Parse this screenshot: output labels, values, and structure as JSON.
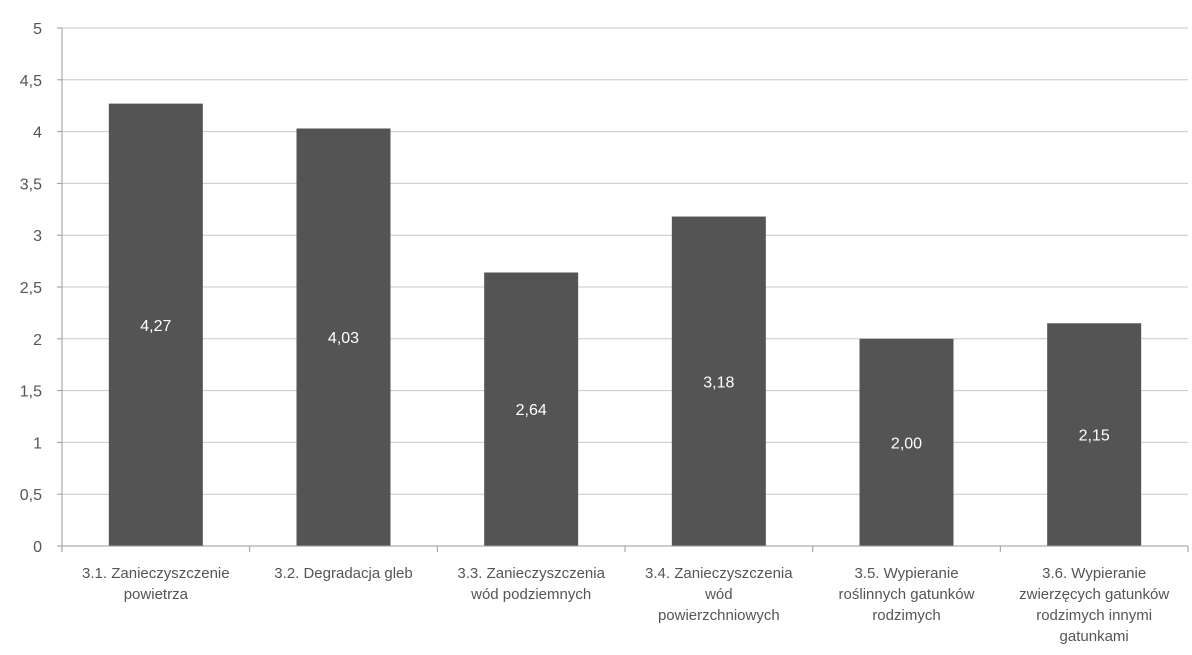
{
  "chart_data": {
    "type": "bar",
    "categories": [
      [
        "3.1. Zanieczyszczenie",
        "powietrza"
      ],
      [
        "3.2. Degradacja gleb"
      ],
      [
        "3.3. Zanieczyszczenia",
        "wód podziemnych"
      ],
      [
        "3.4. Zanieczyszczenia",
        "wód",
        "powierzchniowych"
      ],
      [
        "3.5. Wypieranie",
        "roślinnych gatunków",
        "rodzimych"
      ],
      [
        "3.6. Wypieranie",
        "zwierzęcych gatunków",
        "rodzimych innymi",
        "gatunkami"
      ]
    ],
    "values": [
      4.27,
      4.03,
      2.64,
      3.18,
      2.0,
      2.15
    ],
    "data_labels": [
      "4,27",
      "4,03",
      "2,64",
      "3,18",
      "2,00",
      "2,15"
    ],
    "yticks": [
      0,
      0.5,
      1,
      1.5,
      2,
      2.5,
      3,
      3.5,
      4,
      4.5,
      5
    ],
    "ytick_labels": [
      "0",
      "0,5",
      "1",
      "1,5",
      "2",
      "2,5",
      "3",
      "3,5",
      "4",
      "4,5",
      "5"
    ],
    "ylim": [
      0,
      5
    ],
    "title": "",
    "xlabel": "",
    "ylabel": "",
    "grid": true,
    "legend": "none",
    "bar_color": "#545454"
  }
}
